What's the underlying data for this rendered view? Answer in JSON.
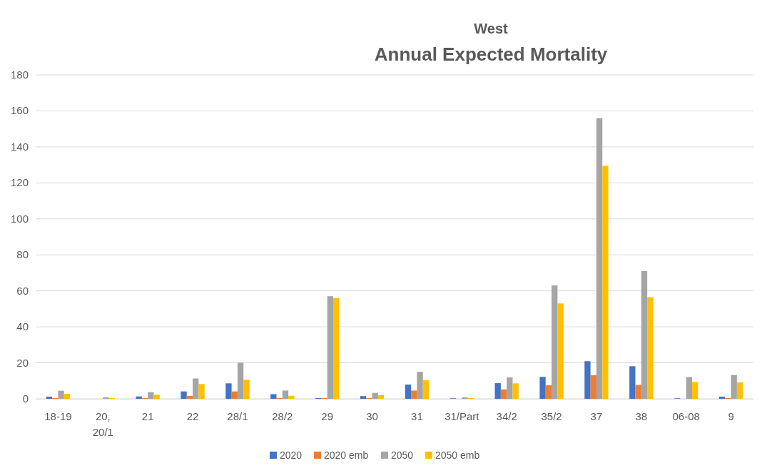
{
  "chart_data": {
    "type": "bar",
    "title": "Annual Expected Mortality",
    "subtitle": "West",
    "categories": [
      "18-19",
      "20, 20/1",
      "21",
      "22",
      "28/1",
      "28/2",
      "29",
      "30",
      "31",
      "31/Part",
      "34/2",
      "35/2",
      "37",
      "38",
      "06-08",
      "9"
    ],
    "series": [
      {
        "name": "2020",
        "color": "#4472c4",
        "values": [
          1.2,
          0,
          1.3,
          4.1,
          8.6,
          2.6,
          0.4,
          1.5,
          7.9,
          0.3,
          8.7,
          12.2,
          20.9,
          18.1,
          0.3,
          1.2
        ]
      },
      {
        "name": "2020 emb",
        "color": "#ed7d31",
        "values": [
          0.4,
          0,
          0.4,
          1.6,
          4.1,
          0.4,
          0.4,
          0.4,
          4.6,
          0,
          5.2,
          7.5,
          13.1,
          7.7,
          0,
          0.4
        ]
      },
      {
        "name": "2050",
        "color": "#a5a5a5",
        "values": [
          4.5,
          0.8,
          3.7,
          11.3,
          20.1,
          4.6,
          57,
          3.3,
          15,
          0.8,
          11.9,
          63,
          156,
          71,
          12.1,
          13.2
        ]
      },
      {
        "name": "2050 emb",
        "color": "#ffc000",
        "values": [
          2.8,
          0.4,
          2.3,
          8.2,
          10.6,
          1.7,
          56,
          2,
          10.3,
          0.4,
          8.6,
          53,
          129.5,
          56.5,
          9.3,
          9.1
        ]
      }
    ],
    "ylim": [
      0,
      180
    ],
    "yticks": [
      0,
      20,
      40,
      60,
      80,
      100,
      120,
      140,
      160,
      180
    ],
    "grid": "y",
    "legend": "bottom"
  }
}
